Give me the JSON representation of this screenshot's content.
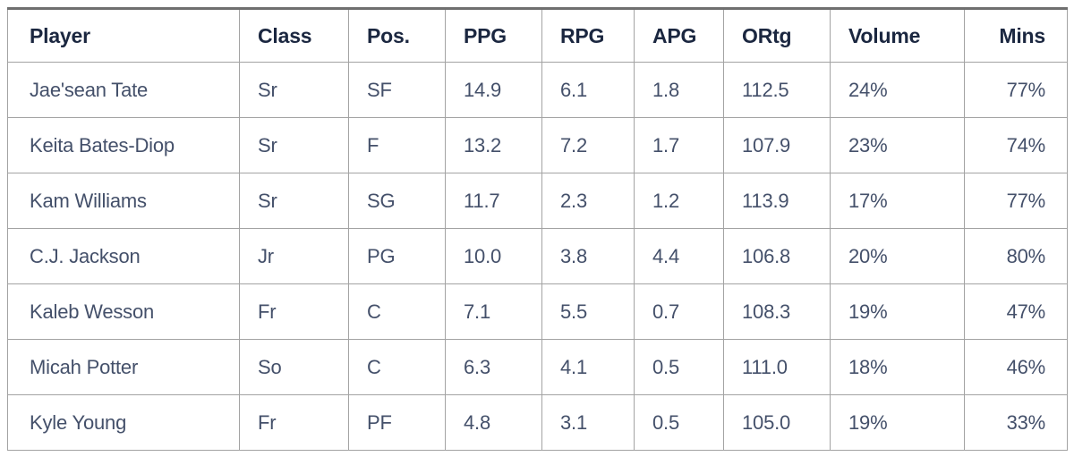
{
  "chart_data": {
    "type": "table",
    "columns": [
      {
        "key": "player",
        "label": "Player",
        "align": "left"
      },
      {
        "key": "class",
        "label": "Class",
        "align": "left"
      },
      {
        "key": "pos",
        "label": "Pos.",
        "align": "left"
      },
      {
        "key": "ppg",
        "label": "PPG",
        "align": "left"
      },
      {
        "key": "rpg",
        "label": "RPG",
        "align": "left"
      },
      {
        "key": "apg",
        "label": "APG",
        "align": "left"
      },
      {
        "key": "ortg",
        "label": "ORtg",
        "align": "left"
      },
      {
        "key": "volume",
        "label": "Volume",
        "align": "left"
      },
      {
        "key": "mins",
        "label": "Mins",
        "align": "right"
      }
    ],
    "rows": [
      {
        "player": "Jae'sean Tate",
        "class": "Sr",
        "pos": "SF",
        "ppg": "14.9",
        "rpg": "6.1",
        "apg": "1.8",
        "ortg": "112.5",
        "volume": "24%",
        "mins": "77%"
      },
      {
        "player": "Keita Bates-Diop",
        "class": "Sr",
        "pos": "F",
        "ppg": "13.2",
        "rpg": "7.2",
        "apg": "1.7",
        "ortg": "107.9",
        "volume": "23%",
        "mins": "74%"
      },
      {
        "player": "Kam Williams",
        "class": "Sr",
        "pos": "SG",
        "ppg": "11.7",
        "rpg": "2.3",
        "apg": "1.2",
        "ortg": "113.9",
        "volume": "17%",
        "mins": "77%"
      },
      {
        "player": "C.J. Jackson",
        "class": "Jr",
        "pos": "PG",
        "ppg": "10.0",
        "rpg": "3.8",
        "apg": "4.4",
        "ortg": "106.8",
        "volume": "20%",
        "mins": "80%"
      },
      {
        "player": "Kaleb Wesson",
        "class": "Fr",
        "pos": "C",
        "ppg": "7.1",
        "rpg": "5.5",
        "apg": "0.7",
        "ortg": "108.3",
        "volume": "19%",
        "mins": "47%"
      },
      {
        "player": "Micah Potter",
        "class": "So",
        "pos": "C",
        "ppg": "6.3",
        "rpg": "4.1",
        "apg": "0.5",
        "ortg": "111.0",
        "volume": "18%",
        "mins": "46%"
      },
      {
        "player": "Kyle Young",
        "class": "Fr",
        "pos": "PF",
        "ppg": "4.8",
        "rpg": "3.1",
        "apg": "0.5",
        "ortg": "105.0",
        "volume": "19%",
        "mins": "33%"
      }
    ]
  },
  "colors": {
    "header_text": "#1b2740",
    "body_text": "#44506a",
    "grid_line": "#a3a3a3",
    "outer_border": "#8a8a8a",
    "top_border": "#6f6f6f",
    "background": "#ffffff"
  }
}
